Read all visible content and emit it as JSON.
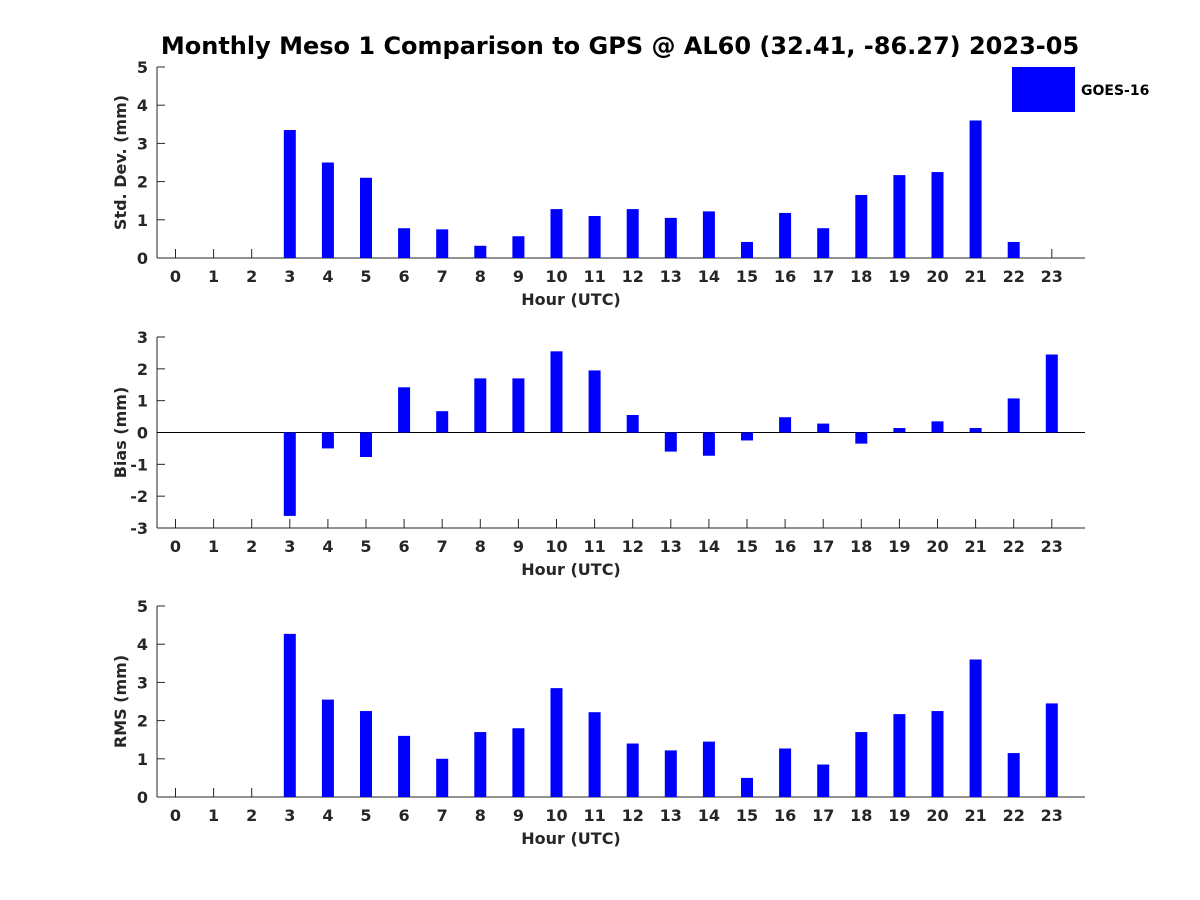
{
  "chart_data": {
    "title": "Monthly Meso 1 Comparison to GPS @ AL60 (32.41, -86.27) 2023-05",
    "legend": {
      "label": "GOES-16",
      "placement": "top-right"
    },
    "bar_color": "#0000ff",
    "panels": [
      {
        "type": "bar",
        "xlabel": "Hour (UTC)",
        "ylabel": "Std. Dev. (mm)",
        "ylim": [
          0,
          5
        ],
        "yticks": [
          "0",
          "1",
          "2",
          "3",
          "4",
          "5"
        ],
        "categories": [
          "0",
          "1",
          "2",
          "3",
          "4",
          "5",
          "6",
          "7",
          "8",
          "9",
          "10",
          "11",
          "12",
          "13",
          "14",
          "15",
          "16",
          "17",
          "18",
          "19",
          "20",
          "21",
          "22",
          "23"
        ],
        "values": [
          null,
          null,
          null,
          3.35,
          2.5,
          2.1,
          0.78,
          0.75,
          0.32,
          0.57,
          1.28,
          1.1,
          1.28,
          1.05,
          1.22,
          0.42,
          1.18,
          0.78,
          1.65,
          2.17,
          2.25,
          3.6,
          0.42,
          null
        ]
      },
      {
        "type": "bar",
        "xlabel": "Hour (UTC)",
        "ylabel": "Bias (mm)",
        "ylim": [
          -3,
          3
        ],
        "yticks": [
          "-3",
          "-2",
          "-1",
          "0",
          "1",
          "2",
          "3"
        ],
        "categories": [
          "0",
          "1",
          "2",
          "3",
          "4",
          "5",
          "6",
          "7",
          "8",
          "9",
          "10",
          "11",
          "12",
          "13",
          "14",
          "15",
          "16",
          "17",
          "18",
          "19",
          "20",
          "21",
          "22",
          "23"
        ],
        "values": [
          null,
          null,
          null,
          -2.62,
          -0.5,
          -0.77,
          1.42,
          0.67,
          1.7,
          1.7,
          2.55,
          1.95,
          0.55,
          -0.6,
          -0.73,
          -0.25,
          0.48,
          0.28,
          -0.35,
          0.14,
          0.35,
          0.14,
          1.07,
          2.45
        ]
      },
      {
        "type": "bar",
        "xlabel": "Hour (UTC)",
        "ylabel": "RMS (mm)",
        "ylim": [
          0,
          5
        ],
        "yticks": [
          "0",
          "1",
          "2",
          "3",
          "4",
          "5"
        ],
        "categories": [
          "0",
          "1",
          "2",
          "3",
          "4",
          "5",
          "6",
          "7",
          "8",
          "9",
          "10",
          "11",
          "12",
          "13",
          "14",
          "15",
          "16",
          "17",
          "18",
          "19",
          "20",
          "21",
          "22",
          "23"
        ],
        "values": [
          null,
          null,
          null,
          4.27,
          2.55,
          2.25,
          1.6,
          1.0,
          1.7,
          1.8,
          2.85,
          2.22,
          1.4,
          1.22,
          1.45,
          0.5,
          1.27,
          0.85,
          1.7,
          2.17,
          2.25,
          3.6,
          1.15,
          2.45
        ]
      }
    ]
  }
}
